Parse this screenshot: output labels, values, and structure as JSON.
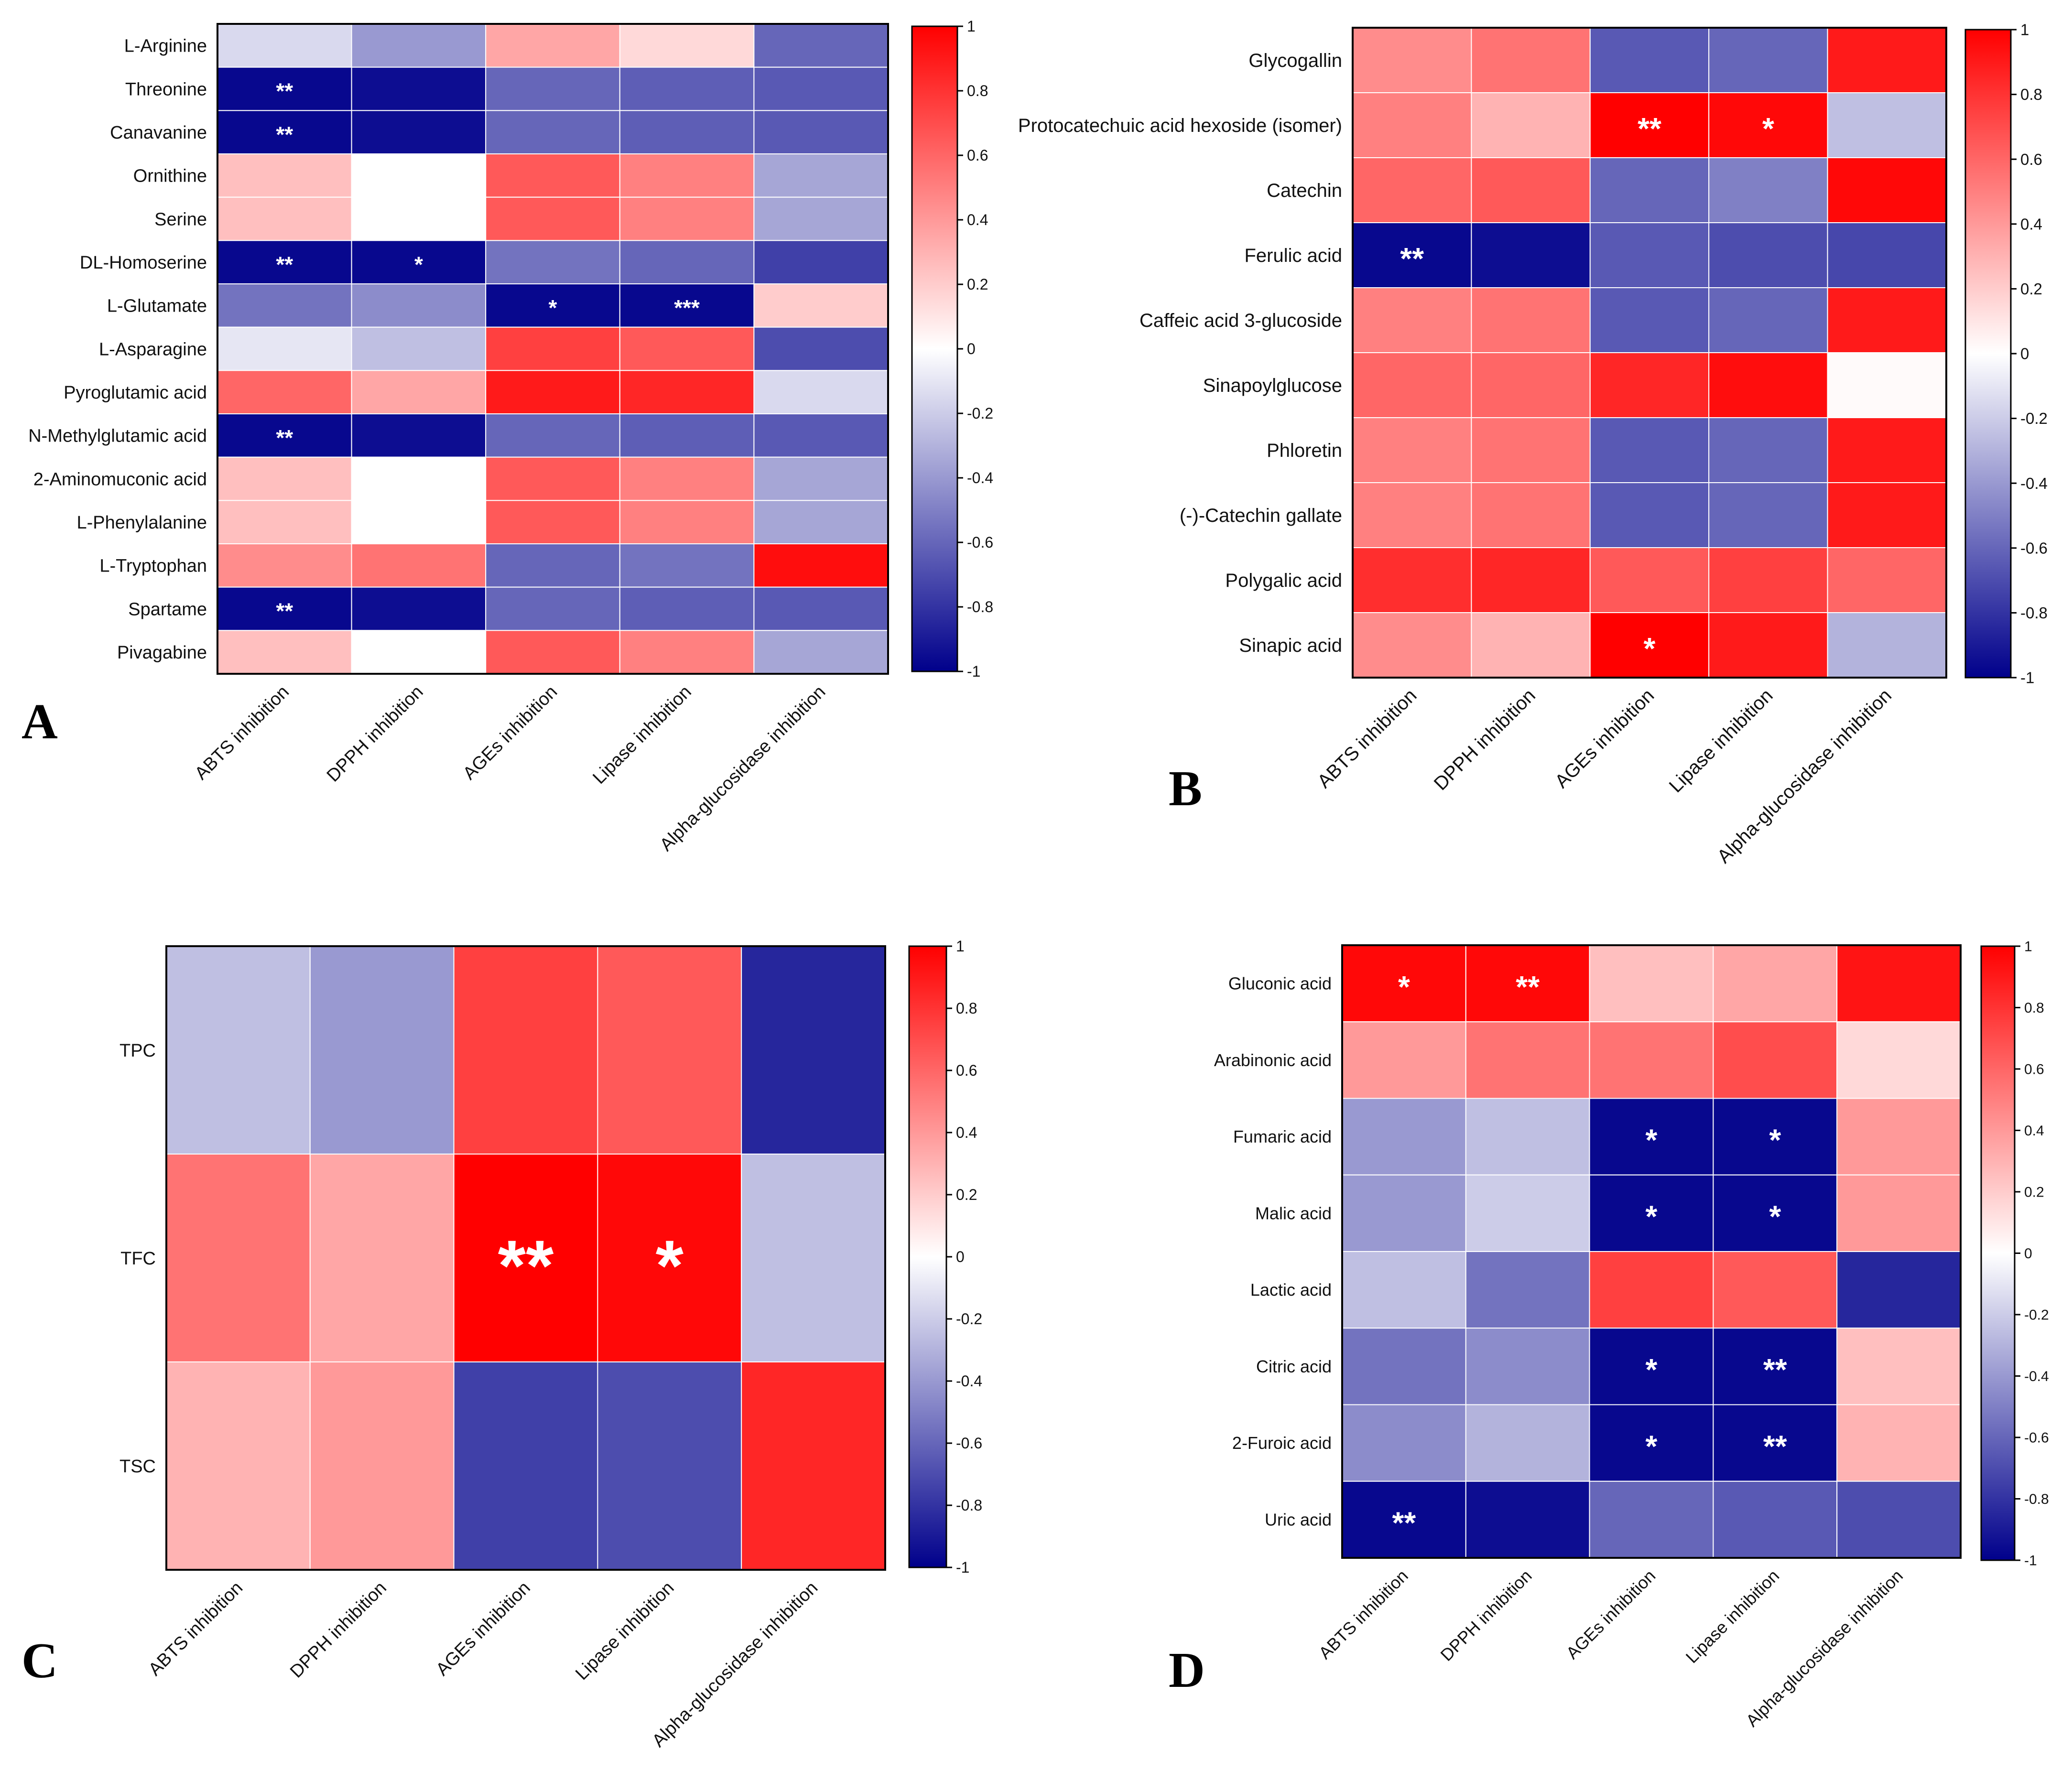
{
  "colors": {
    "neg": "#00008b",
    "zero": "#ffffff",
    "pos": "#ff0000",
    "grid": "#ffffff",
    "frame": "#000000"
  },
  "chart_data": [
    {
      "type": "heatmap",
      "panel": "A",
      "rows": [
        "L-Arginine",
        "Threonine",
        "Canavanine",
        "Ornithine",
        "Serine",
        "DL-Homoserine",
        "L-Glutamate",
        "L-Asparagine",
        "Pyroglutamic acid",
        "N-Methylglutamic acid",
        "2-Aminomuconic acid",
        "L-Phenylalanine",
        "L-Tryptophan",
        "Spartame",
        "Pivagabine"
      ],
      "columns": [
        "ABTS inhibition",
        "DPPH inhibition",
        "AGEs inhibition",
        "Lipase inhibition",
        "Alpha-glucosidase inhibition"
      ],
      "values": [
        [
          -0.15,
          -0.4,
          0.35,
          0.15,
          -0.6
        ],
        [
          -0.97,
          -0.95,
          -0.6,
          -0.63,
          -0.65
        ],
        [
          -0.97,
          -0.95,
          -0.6,
          -0.63,
          -0.65
        ],
        [
          0.25,
          0.0,
          0.65,
          0.5,
          -0.35
        ],
        [
          0.25,
          0.0,
          0.65,
          0.5,
          -0.35
        ],
        [
          -0.97,
          -0.97,
          -0.55,
          -0.6,
          -0.75
        ],
        [
          -0.55,
          -0.45,
          -0.97,
          -0.97,
          0.2
        ],
        [
          -0.1,
          -0.25,
          0.75,
          0.65,
          -0.7
        ],
        [
          0.6,
          0.35,
          0.9,
          0.85,
          -0.15
        ],
        [
          -0.97,
          -0.95,
          -0.6,
          -0.63,
          -0.65
        ],
        [
          0.25,
          0.0,
          0.65,
          0.5,
          -0.35
        ],
        [
          0.25,
          0.0,
          0.65,
          0.5,
          -0.35
        ],
        [
          0.45,
          0.55,
          -0.6,
          -0.55,
          0.95
        ],
        [
          -0.97,
          -0.95,
          -0.6,
          -0.63,
          -0.65
        ],
        [
          0.25,
          0.0,
          0.65,
          0.5,
          -0.35
        ]
      ],
      "annotations": [
        {
          "row": 1,
          "col": 0,
          "text": "**"
        },
        {
          "row": 2,
          "col": 0,
          "text": "**"
        },
        {
          "row": 5,
          "col": 0,
          "text": "**"
        },
        {
          "row": 5,
          "col": 1,
          "text": "*"
        },
        {
          "row": 6,
          "col": 2,
          "text": "*"
        },
        {
          "row": 6,
          "col": 3,
          "text": "***"
        },
        {
          "row": 9,
          "col": 0,
          "text": "**"
        },
        {
          "row": 13,
          "col": 0,
          "text": "**"
        }
      ],
      "colorbar": {
        "range": [
          -1,
          1
        ],
        "ticks": [
          "1",
          "0.8",
          "0.6",
          "0.4",
          "0.2",
          "0",
          "-0.2",
          "-0.4",
          "-0.6",
          "-0.8",
          "-1"
        ]
      }
    },
    {
      "type": "heatmap",
      "panel": "B",
      "rows": [
        "Glycogallin",
        "Protocatechuic acid hexoside (isomer)",
        "Catechin",
        "Ferulic acid",
        "Caffeic acid 3-glucoside",
        "Sinapoylglucose",
        "Phloretin",
        "(-)-Catechin gallate",
        "Polygalic acid",
        "Sinapic acid"
      ],
      "columns": [
        "ABTS inhibition",
        "DPPH inhibition",
        "AGEs inhibition",
        "Lipase inhibition",
        "Alpha-glucosidase inhibition"
      ],
      "values": [
        [
          0.45,
          0.55,
          -0.65,
          -0.6,
          0.9
        ],
        [
          0.5,
          0.3,
          1.0,
          0.97,
          -0.25
        ],
        [
          0.6,
          0.65,
          -0.6,
          -0.5,
          0.97
        ],
        [
          -0.97,
          -0.95,
          -0.65,
          -0.7,
          -0.72
        ],
        [
          0.5,
          0.55,
          -0.65,
          -0.6,
          0.9
        ],
        [
          0.6,
          0.6,
          0.85,
          0.95,
          0.02
        ],
        [
          0.5,
          0.55,
          -0.65,
          -0.6,
          0.9
        ],
        [
          0.5,
          0.55,
          -0.65,
          -0.6,
          0.9
        ],
        [
          0.82,
          0.85,
          0.65,
          0.75,
          0.6
        ],
        [
          0.45,
          0.3,
          1.0,
          0.9,
          -0.3
        ]
      ],
      "annotations": [
        {
          "row": 1,
          "col": 2,
          "text": "**"
        },
        {
          "row": 1,
          "col": 3,
          "text": "*"
        },
        {
          "row": 3,
          "col": 0,
          "text": "**"
        },
        {
          "row": 9,
          "col": 2,
          "text": "*"
        }
      ],
      "colorbar": {
        "range": [
          -1,
          1
        ],
        "ticks": [
          "1",
          "0.8",
          "0.6",
          "0.4",
          "0.2",
          "0",
          "-0.2",
          "-0.4",
          "-0.6",
          "-0.8",
          "-1"
        ]
      }
    },
    {
      "type": "heatmap",
      "panel": "C",
      "rows": [
        "TPC",
        "TFC",
        "TSC"
      ],
      "columns": [
        "ABTS inhibition",
        "DPPH inhibition",
        "AGEs inhibition",
        "Lipase inhibition",
        "Alpha-glucosidase inhibition"
      ],
      "values": [
        [
          -0.25,
          -0.4,
          0.75,
          0.65,
          -0.85
        ],
        [
          0.55,
          0.35,
          1.0,
          0.97,
          -0.25
        ],
        [
          0.3,
          0.4,
          -0.75,
          -0.7,
          0.85
        ]
      ],
      "annotations": [
        {
          "row": 1,
          "col": 2,
          "text": "**"
        },
        {
          "row": 1,
          "col": 3,
          "text": "*"
        }
      ],
      "colorbar": {
        "range": [
          -1,
          1
        ],
        "ticks": [
          "1",
          "0.8",
          "0.6",
          "0.4",
          "0.2",
          "0",
          "-0.2",
          "-0.4",
          "-0.6",
          "-0.8",
          "-1"
        ]
      }
    },
    {
      "type": "heatmap",
      "panel": "D",
      "rows": [
        "Gluconic acid",
        "Arabinonic acid",
        "Fumaric acid",
        "Malic acid",
        "Lactic acid",
        "Citric acid",
        "2-Furoic acid",
        "Uric acid"
      ],
      "columns": [
        "ABTS inhibition",
        "DPPH inhibition",
        "AGEs inhibition",
        "Lipase inhibition",
        "Alpha-glucosidase inhibition"
      ],
      "values": [
        [
          0.97,
          0.97,
          0.25,
          0.35,
          0.92
        ],
        [
          0.4,
          0.55,
          0.55,
          0.7,
          0.15
        ],
        [
          -0.4,
          -0.25,
          -0.97,
          -0.97,
          0.4
        ],
        [
          -0.4,
          -0.2,
          -0.97,
          -0.97,
          0.4
        ],
        [
          -0.25,
          -0.55,
          0.75,
          0.65,
          -0.85
        ],
        [
          -0.55,
          -0.45,
          -0.97,
          -0.97,
          0.25
        ],
        [
          -0.45,
          -0.3,
          -0.97,
          -0.97,
          0.3
        ],
        [
          -0.97,
          -0.95,
          -0.6,
          -0.65,
          -0.7
        ]
      ],
      "annotations": [
        {
          "row": 0,
          "col": 0,
          "text": "*"
        },
        {
          "row": 0,
          "col": 1,
          "text": "**"
        },
        {
          "row": 2,
          "col": 2,
          "text": "*"
        },
        {
          "row": 2,
          "col": 3,
          "text": "*"
        },
        {
          "row": 3,
          "col": 2,
          "text": "*"
        },
        {
          "row": 3,
          "col": 3,
          "text": "*"
        },
        {
          "row": 5,
          "col": 2,
          "text": "*"
        },
        {
          "row": 5,
          "col": 3,
          "text": "**"
        },
        {
          "row": 6,
          "col": 2,
          "text": "*"
        },
        {
          "row": 6,
          "col": 3,
          "text": "**"
        },
        {
          "row": 7,
          "col": 0,
          "text": "**"
        }
      ],
      "colorbar": {
        "range": [
          -1,
          1
        ],
        "ticks": [
          "1",
          "0.8",
          "0.6",
          "0.4",
          "0.2",
          "0",
          "-0.2",
          "-0.4",
          "-0.6",
          "-0.8",
          "-1"
        ]
      }
    }
  ]
}
